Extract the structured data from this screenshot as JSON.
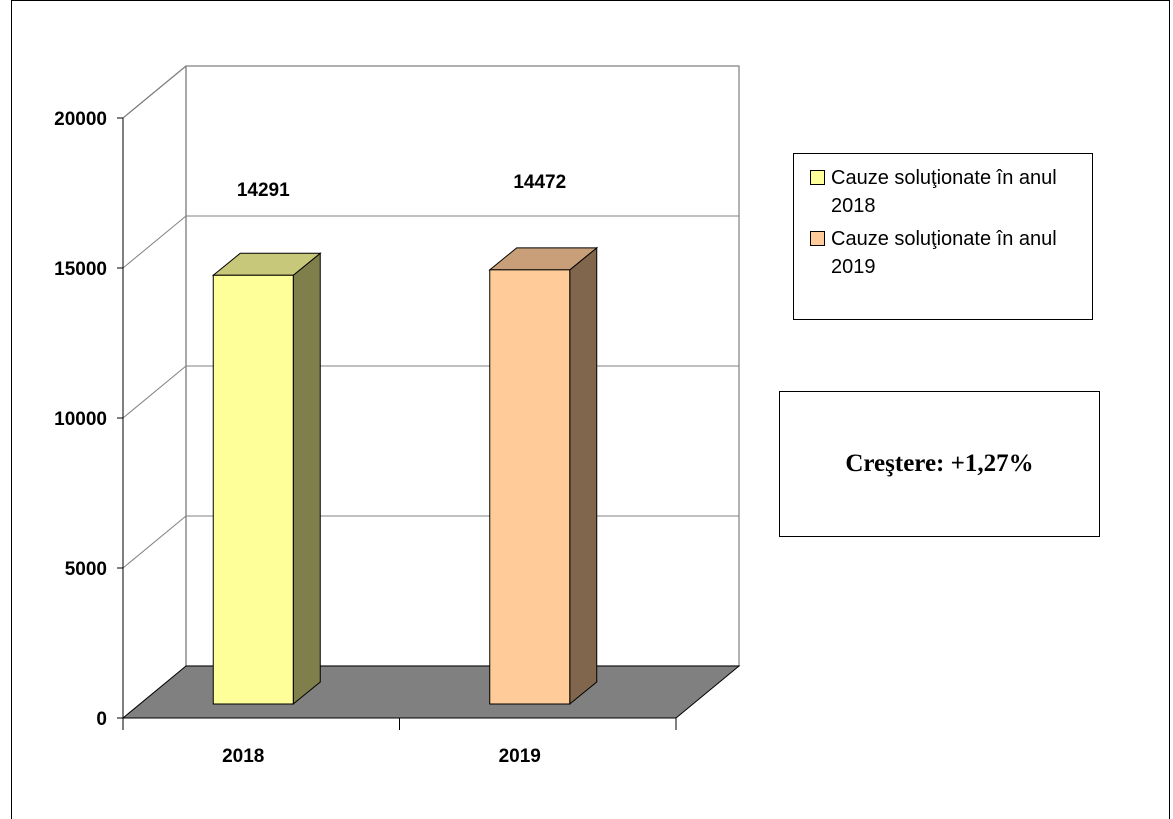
{
  "chart_data": {
    "type": "bar",
    "categories": [
      "2018",
      "2019"
    ],
    "series": [
      {
        "name": "Cauze soluţionate în anul 2018",
        "values": [
          14291,
          null
        ],
        "color": "#FFFF99",
        "side_color": "#7F7F4C",
        "top_color": "#C8C87A"
      },
      {
        "name": "Cauze soluţionate în anul 2019",
        "values": [
          null,
          14472
        ],
        "color": "#FFCC99",
        "side_color": "#7F664C",
        "top_color": "#C89F78"
      }
    ],
    "data_labels": [
      "14291",
      "14472"
    ],
    "yticks": [
      "0",
      "5000",
      "10000",
      "15000",
      "20000"
    ],
    "ylim": [
      0,
      20000
    ],
    "grid": true,
    "three_d": true,
    "legend_position": "right",
    "floor_color": "#808080",
    "title": "",
    "xlabel": "",
    "ylabel": ""
  },
  "annotation": {
    "text": "Creştere: +1,27%"
  }
}
